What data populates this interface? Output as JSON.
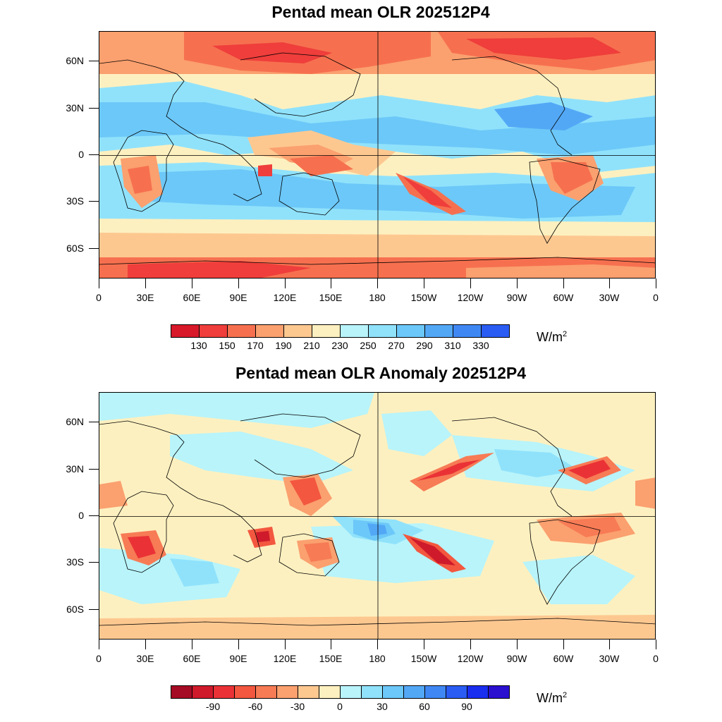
{
  "map_top": {
    "title": "Pentad mean OLR 202512P4",
    "units_base": "W/m",
    "units_exp": "2",
    "lat_labels": [
      "60N",
      "30N",
      "0",
      "30S",
      "60S"
    ],
    "lon_labels": [
      "0",
      "30E",
      "60E",
      "90E",
      "120E",
      "150E",
      "180",
      "150W",
      "120W",
      "90W",
      "60W",
      "30W",
      "0"
    ],
    "colorbar_labels": [
      "130",
      "150",
      "170",
      "190",
      "210",
      "230",
      "250",
      "270",
      "290",
      "310",
      "330"
    ],
    "colors": [
      "#d7192a",
      "#ef3e3b",
      "#f6704f",
      "#fba06f",
      "#fdc890",
      "#fdf0c0",
      "#b8f4fa",
      "#90e2fb",
      "#6cc8f8",
      "#53a8f6",
      "#3f88f4",
      "#2a5cf3"
    ]
  },
  "map_bottom": {
    "title": "Pentad mean OLR Anomaly 202512P4",
    "units_base": "W/m",
    "units_exp": "2",
    "lat_labels": [
      "60N",
      "30N",
      "0",
      "30S",
      "60S"
    ],
    "lon_labels": [
      "0",
      "30E",
      "60E",
      "90E",
      "120E",
      "150E",
      "180",
      "150W",
      "120W",
      "90W",
      "60W",
      "30W",
      "0"
    ],
    "colorbar_labels": [
      "-90",
      "-60",
      "-30",
      "0",
      "30",
      "60",
      "90"
    ],
    "colors": [
      "#a50b24",
      "#cf1a2b",
      "#ea3236",
      "#f3573f",
      "#f77b55",
      "#fba06f",
      "#fdc890",
      "#fdf0c0",
      "#b8f4fa",
      "#90e2fb",
      "#6cc8f8",
      "#53a8f6",
      "#3f88f4",
      "#2a5cf3",
      "#1a2ef0",
      "#2b10d0"
    ]
  }
}
